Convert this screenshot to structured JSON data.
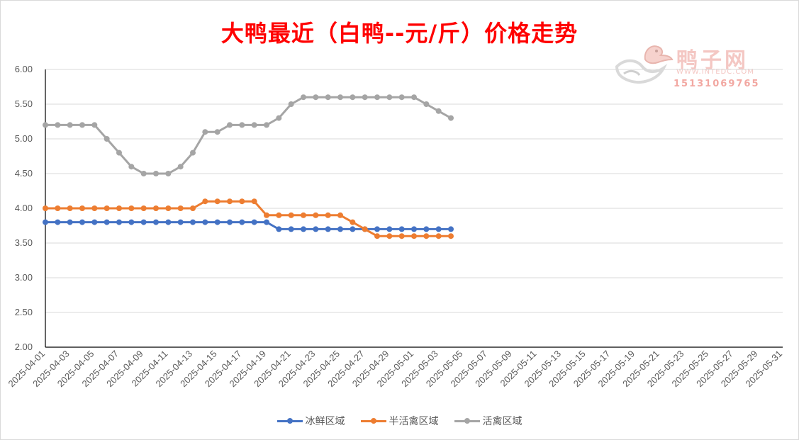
{
  "page": {
    "title": "大鸭最近（白鸭--元/斤）价格走势"
  },
  "watermark": {
    "brand": "鸭子网",
    "url": "WWW.INTEDC.COM",
    "phone": "15131069765"
  },
  "chart_data": {
    "type": "line",
    "title": "大鸭最近（白鸭--元/斤）价格走势",
    "xlabel": "",
    "ylabel": "",
    "ylim": [
      2.0,
      6.0
    ],
    "yticks": [
      "6.00",
      "5.50",
      "5.00",
      "4.50",
      "4.00",
      "3.50",
      "3.00",
      "2.50",
      "2.00"
    ],
    "grid": true,
    "legend_position": "bottom",
    "x_axis_start": "2025-04-01",
    "x_axis_end": "2025-05-31",
    "x_tick_labels": [
      "2025-04-01",
      "2025-04-03",
      "2025-04-05",
      "2025-04-07",
      "2025-04-09",
      "2025-04-11",
      "2025-04-13",
      "2025-04-15",
      "2025-04-17",
      "2025-04-19",
      "2025-04-21",
      "2025-04-23",
      "2025-04-25",
      "2025-04-27",
      "2025-04-29",
      "2025-05-01",
      "2025-05-03",
      "2025-05-05",
      "2025-05-07",
      "2025-05-09",
      "2025-05-11",
      "2025-05-13",
      "2025-05-15",
      "2025-05-17",
      "2025-05-19",
      "2025-05-21",
      "2025-05-23",
      "2025-05-25",
      "2025-05-27",
      "2025-05-29",
      "2025-05-31"
    ],
    "dates": [
      "2025-04-01",
      "2025-04-02",
      "2025-04-03",
      "2025-04-04",
      "2025-04-05",
      "2025-04-06",
      "2025-04-07",
      "2025-04-08",
      "2025-04-09",
      "2025-04-10",
      "2025-04-11",
      "2025-04-12",
      "2025-04-13",
      "2025-04-14",
      "2025-04-15",
      "2025-04-16",
      "2025-04-17",
      "2025-04-18",
      "2025-04-19",
      "2025-04-20",
      "2025-04-21",
      "2025-04-22",
      "2025-04-23",
      "2025-04-24",
      "2025-04-25",
      "2025-04-26",
      "2025-04-27",
      "2025-04-28",
      "2025-04-29",
      "2025-04-30",
      "2025-05-01",
      "2025-05-02",
      "2025-05-03",
      "2025-05-04"
    ],
    "series": [
      {
        "name": "冰鲜区域",
        "color": "#4472c4",
        "values": [
          3.8,
          3.8,
          3.8,
          3.8,
          3.8,
          3.8,
          3.8,
          3.8,
          3.8,
          3.8,
          3.8,
          3.8,
          3.8,
          3.8,
          3.8,
          3.8,
          3.8,
          3.8,
          3.8,
          3.7,
          3.7,
          3.7,
          3.7,
          3.7,
          3.7,
          3.7,
          3.7,
          3.7,
          3.7,
          3.7,
          3.7,
          3.7,
          3.7,
          3.7
        ]
      },
      {
        "name": "半活禽区域",
        "color": "#ed7d31",
        "values": [
          4.0,
          4.0,
          4.0,
          4.0,
          4.0,
          4.0,
          4.0,
          4.0,
          4.0,
          4.0,
          4.0,
          4.0,
          4.0,
          4.1,
          4.1,
          4.1,
          4.1,
          4.1,
          3.9,
          3.9,
          3.9,
          3.9,
          3.9,
          3.9,
          3.9,
          3.8,
          3.7,
          3.6,
          3.6,
          3.6,
          3.6,
          3.6,
          3.6,
          3.6
        ]
      },
      {
        "name": "活禽区域",
        "color": "#a5a5a5",
        "values": [
          5.2,
          5.2,
          5.2,
          5.2,
          5.2,
          5.0,
          4.8,
          4.6,
          4.5,
          4.5,
          4.5,
          4.6,
          4.8,
          5.1,
          5.1,
          5.2,
          5.2,
          5.2,
          5.2,
          5.3,
          5.5,
          5.6,
          5.6,
          5.6,
          5.6,
          5.6,
          5.6,
          5.6,
          5.6,
          5.6,
          5.6,
          5.5,
          5.4,
          5.3
        ]
      }
    ]
  }
}
